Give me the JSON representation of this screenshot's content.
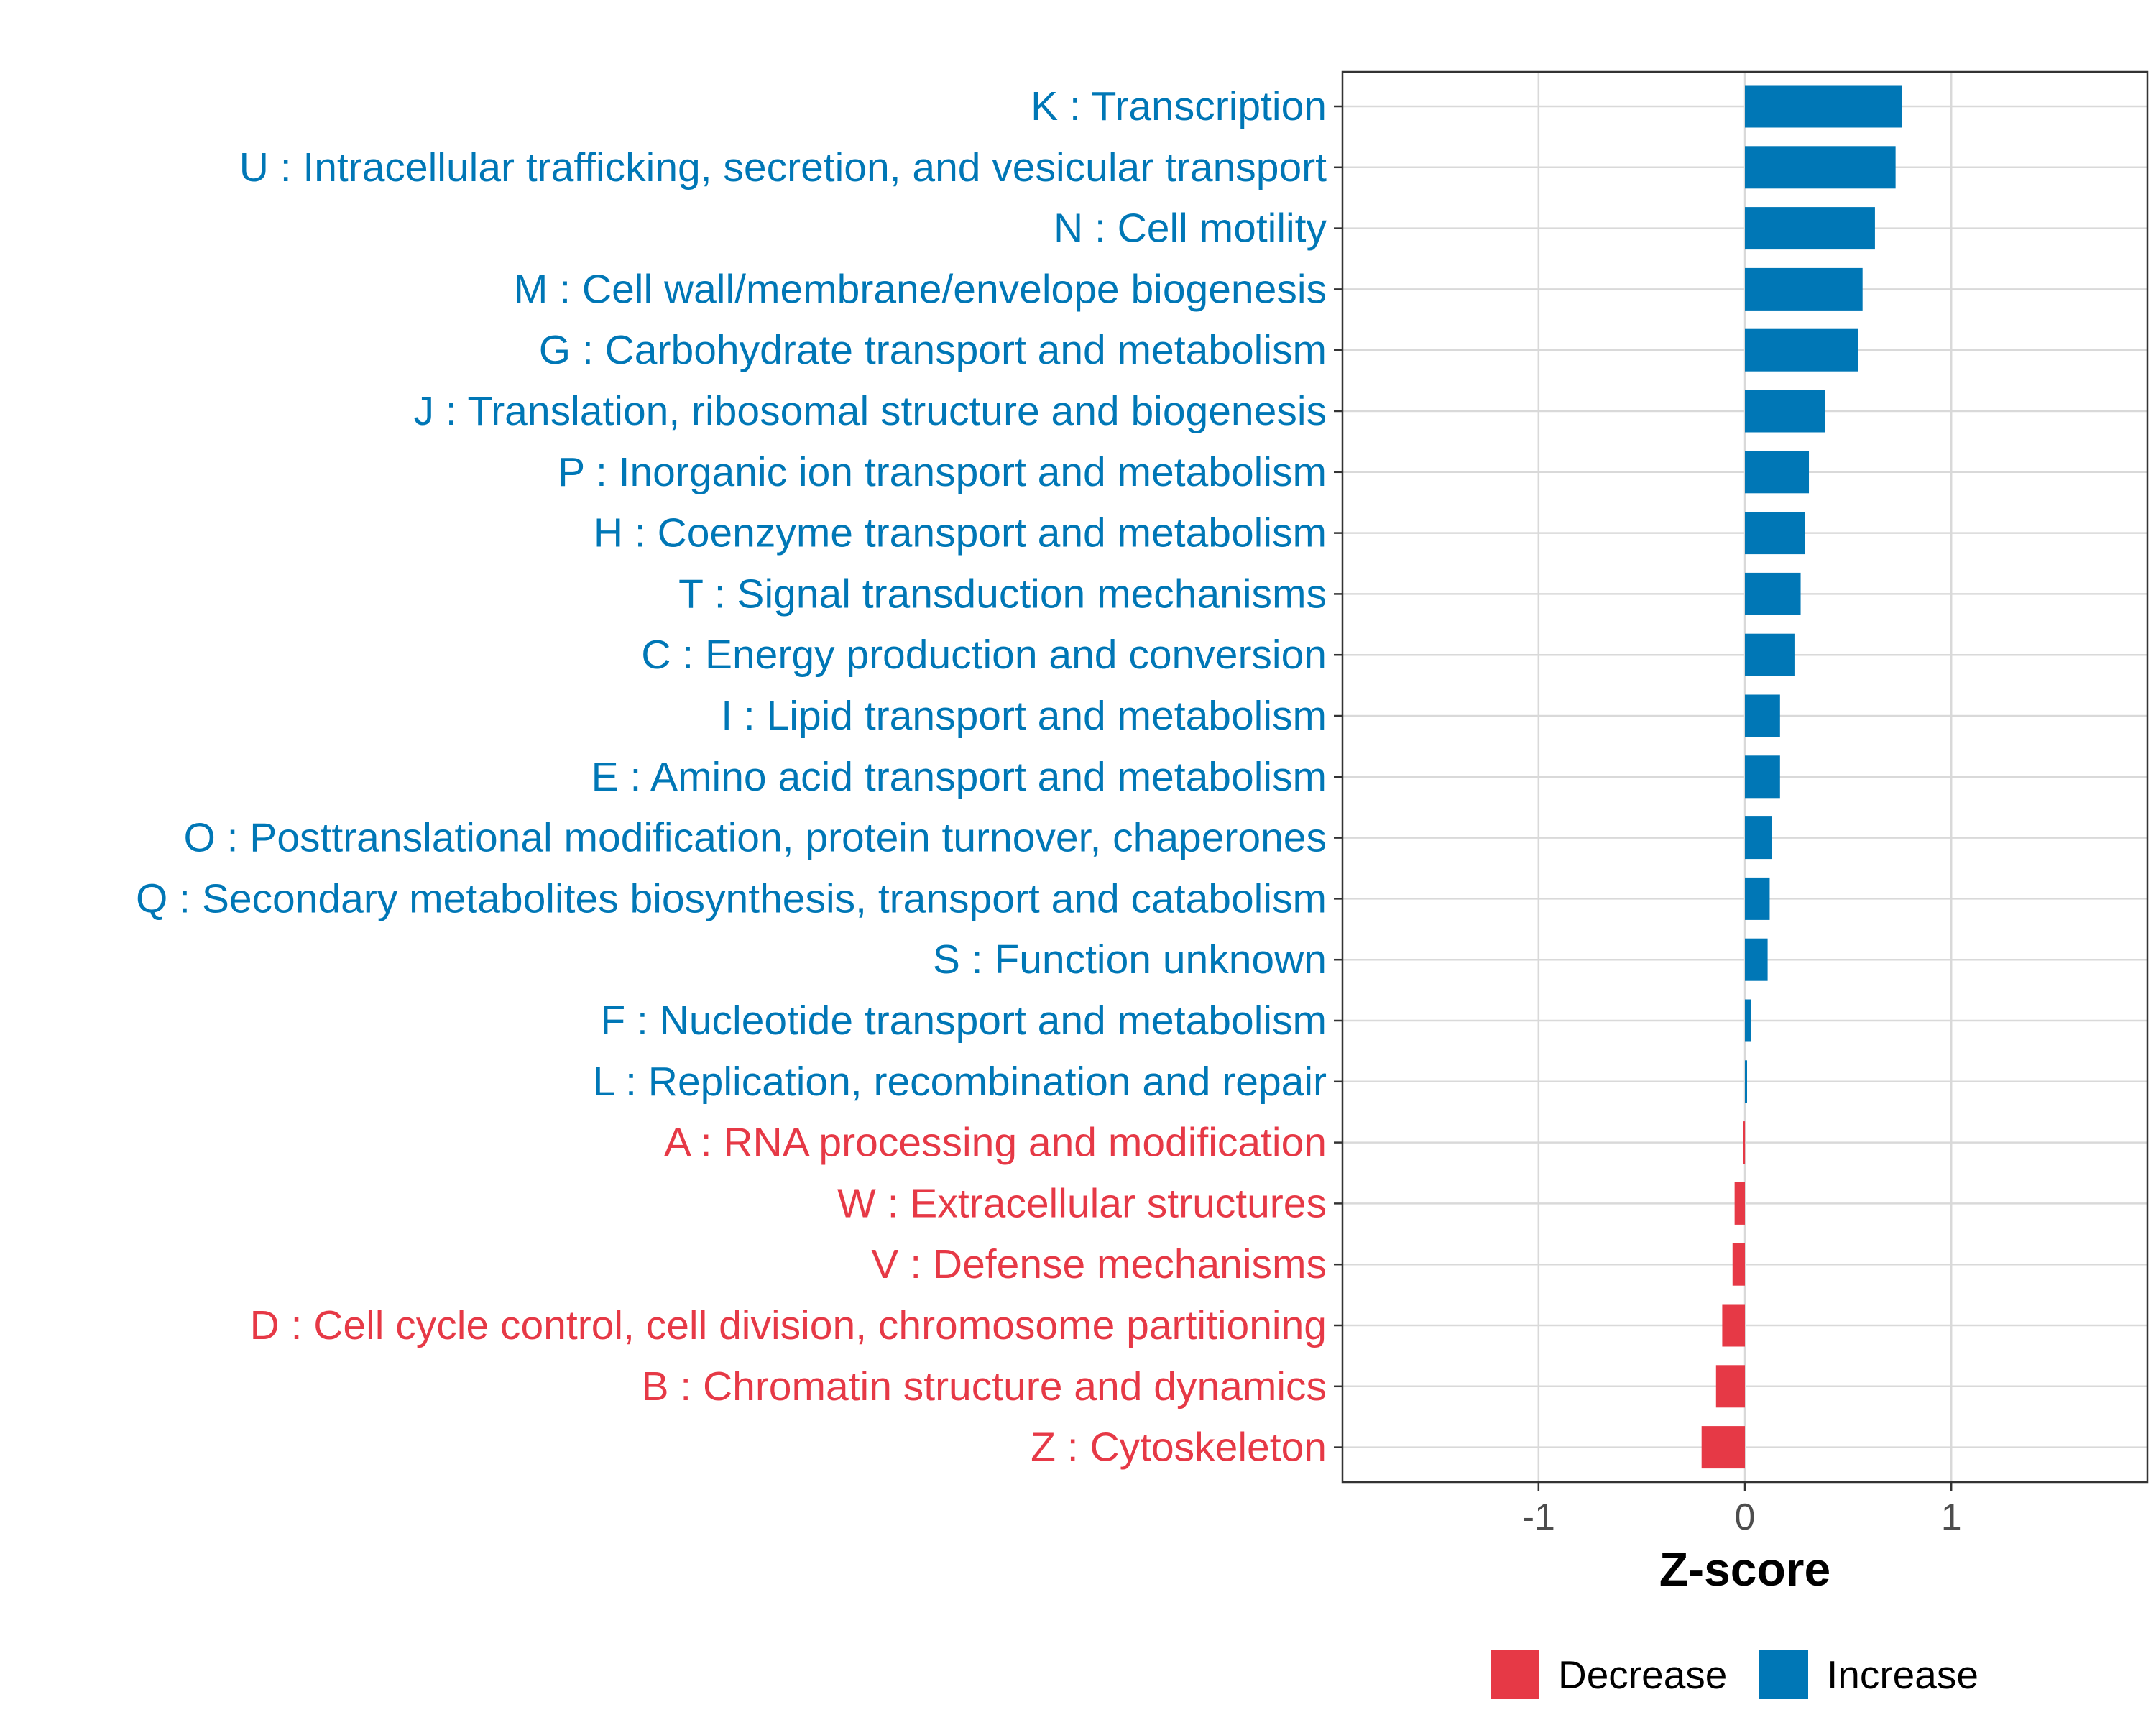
{
  "chart_data": {
    "type": "bar",
    "orientation": "horizontal",
    "title": "",
    "xlabel": "Z-score",
    "ylabel": "",
    "xlim": [
      -1.95,
      1.95
    ],
    "xticks": [
      -1,
      0,
      1
    ],
    "xtick_labels": [
      "-1",
      "0",
      "1"
    ],
    "grid": true,
    "categories": [
      "K : Transcription",
      "U : Intracellular trafficking, secretion, and vesicular transport",
      "N : Cell motility",
      "M : Cell wall/membrane/envelope biogenesis",
      "G : Carbohydrate transport and metabolism",
      "J : Translation, ribosomal structure and biogenesis",
      "P : Inorganic ion transport and metabolism",
      "H : Coenzyme transport and metabolism",
      "T : Signal transduction mechanisms",
      "C : Energy production and conversion",
      "I : Lipid transport and metabolism",
      "E : Amino acid transport and metabolism",
      "O : Posttranslational modification, protein turnover, chaperones",
      "Q : Secondary metabolites biosynthesis, transport and catabolism",
      "S : Function unknown",
      "F : Nucleotide transport and metabolism",
      "L : Replication, recombination and repair",
      "A : RNA processing and modification",
      "W : Extracellular structures",
      "V : Defense mechanisms",
      "D : Cell cycle control, cell division, chromosome partitioning",
      "B : Chromatin structure and dynamics",
      "Z : Cytoskeleton"
    ],
    "values": [
      0.76,
      0.73,
      0.63,
      0.57,
      0.55,
      0.39,
      0.31,
      0.29,
      0.27,
      0.24,
      0.17,
      0.17,
      0.13,
      0.12,
      0.11,
      0.03,
      0.01,
      -0.01,
      -0.05,
      -0.06,
      -0.11,
      -0.14,
      -0.21
    ],
    "groups": [
      "Increase",
      "Increase",
      "Increase",
      "Increase",
      "Increase",
      "Increase",
      "Increase",
      "Increase",
      "Increase",
      "Increase",
      "Increase",
      "Increase",
      "Increase",
      "Increase",
      "Increase",
      "Increase",
      "Increase",
      "Decrease",
      "Decrease",
      "Decrease",
      "Decrease",
      "Decrease",
      "Decrease"
    ],
    "legend": {
      "position": "bottom",
      "entries": [
        {
          "label": "Decrease",
          "color": "#E63946"
        },
        {
          "label": "Increase",
          "color": "#0077B6"
        }
      ]
    },
    "colors": {
      "Increase": "#0077B6",
      "Decrease": "#E63946"
    }
  }
}
